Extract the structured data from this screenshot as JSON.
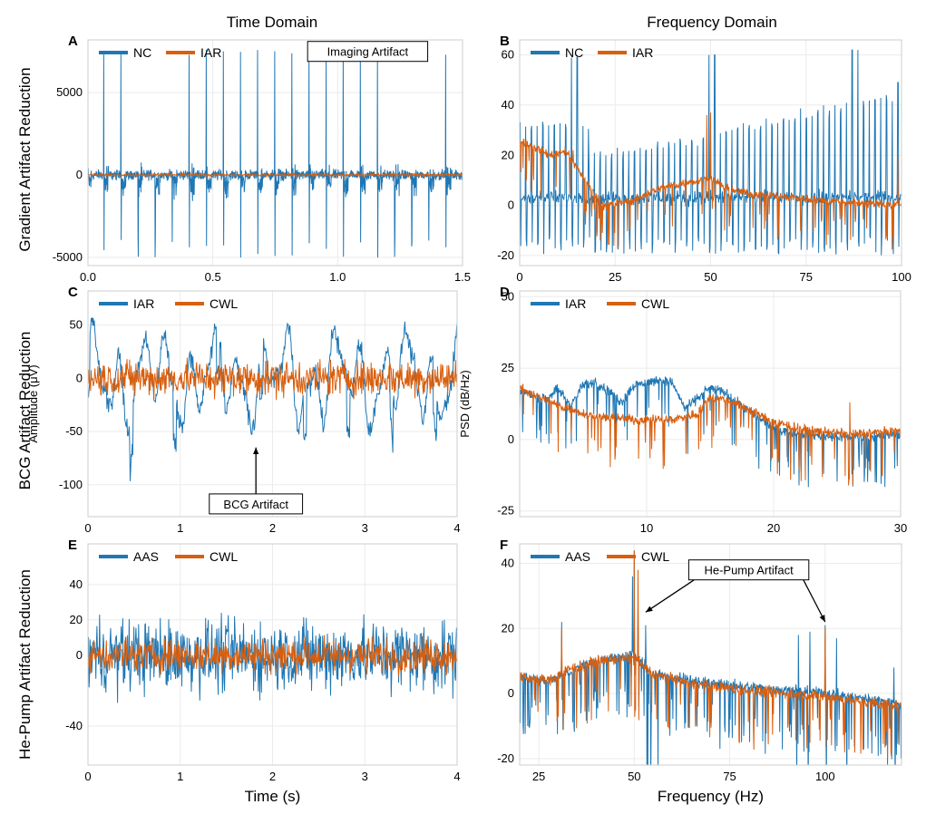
{
  "figure": {
    "columns": [
      "Time Domain",
      "Frequency Domain"
    ],
    "rows": [
      "Gradient Artifact Reduction",
      "BCG Artifact Reduction",
      "He-Pump Artifact Reduction"
    ],
    "xlabels": [
      "Time (s)",
      "Frequency (Hz)"
    ],
    "colors": {
      "blue": "#1f77b4",
      "orange": "#d95f0e",
      "grid": "#ebebeb",
      "frame": "#cccccc"
    }
  },
  "chart_data": [
    {
      "id": "A",
      "type": "line",
      "title": "A",
      "xlabel": "",
      "ylabel": "",
      "xlim": [
        0,
        1.5
      ],
      "ylim": [
        -5500,
        8200
      ],
      "xticks": [
        0.0,
        0.5,
        1.0,
        1.5
      ],
      "xtick_labels": [
        "0.0",
        "0.5",
        "1.0",
        "1.5"
      ],
      "yticks": [
        -5000,
        0,
        5000
      ],
      "ytick_labels": [
        "-5000",
        "0",
        "5000"
      ],
      "legend": {
        "position": "top-left",
        "entries": [
          "NC",
          "IAR"
        ]
      },
      "annotations": [
        {
          "text": "Imaging Artifact",
          "x": 1.12,
          "y": 7500
        }
      ],
      "series": [
        {
          "name": "NC",
          "color": "#1f77b4",
          "kind": "gradient_pulses",
          "period_s": 0.0685,
          "peak": 7600,
          "trough": -5100,
          "baseline_noise": 900
        },
        {
          "name": "IAR",
          "color": "#d95f0e",
          "kind": "noise",
          "center": 0,
          "amplitude": 120
        }
      ]
    },
    {
      "id": "B",
      "type": "line",
      "title": "B",
      "xlabel": "",
      "ylabel": "",
      "xlim": [
        0,
        100
      ],
      "ylim": [
        -24,
        66
      ],
      "xticks": [
        0,
        25,
        50,
        75,
        100
      ],
      "xtick_labels": [
        "0",
        "25",
        "50",
        "75",
        "100"
      ],
      "yticks": [
        -20,
        0,
        20,
        40,
        60
      ],
      "ytick_labels": [
        "-20",
        "0",
        "20",
        "40",
        "60"
      ],
      "legend": {
        "position": "top-left",
        "entries": [
          "NC",
          "IAR"
        ]
      },
      "series": [
        {
          "name": "NC",
          "color": "#1f77b4",
          "kind": "spectrum_comb",
          "comb_spacing_hz": 1.5,
          "comb_base": 32,
          "comb_peaks": [
            [
              14,
              59
            ],
            [
              50,
              60
            ],
            [
              88,
              62
            ],
            [
              99,
              49
            ]
          ]
        },
        {
          "name": "IAR",
          "color": "#d95f0e",
          "kind": "spectrum",
          "envelope": [
            [
              0,
              26
            ],
            [
              8,
              20
            ],
            [
              12,
              22
            ],
            [
              18,
              8
            ],
            [
              22,
              0
            ],
            [
              30,
              2
            ],
            [
              35,
              6
            ],
            [
              40,
              8
            ],
            [
              50,
              11
            ],
            [
              55,
              6
            ],
            [
              65,
              4
            ],
            [
              80,
              2
            ],
            [
              100,
              0
            ]
          ]
        }
      ]
    },
    {
      "id": "C",
      "type": "line",
      "title": "C",
      "xlabel": "",
      "ylabel": "Amplitude (μV)",
      "xlim": [
        0,
        4
      ],
      "ylim": [
        -130,
        82
      ],
      "xticks": [
        0,
        1,
        2,
        3,
        4
      ],
      "xtick_labels": [
        "0",
        "1",
        "2",
        "3",
        "4"
      ],
      "yticks": [
        -100,
        -50,
        0,
        50
      ],
      "ytick_labels": [
        "-100",
        "-50",
        "0",
        "50"
      ],
      "legend": {
        "position": "top-left",
        "entries": [
          "IAR",
          "CWL"
        ]
      },
      "annotations": [
        {
          "text": "BCG Artifact",
          "x": 1.82,
          "y": -118,
          "arrow_to": [
            1.82,
            -65
          ]
        }
      ],
      "series": [
        {
          "name": "IAR",
          "color": "#1f77b4",
          "kind": "bcg",
          "amplitude": 55,
          "beat_period_s": 0.47
        },
        {
          "name": "CWL",
          "color": "#d95f0e",
          "kind": "noise",
          "center": 0,
          "amplitude": 25
        }
      ]
    },
    {
      "id": "D",
      "type": "line",
      "title": "D",
      "xlabel": "",
      "ylabel": "PSD (dB/Hz)",
      "xlim": [
        0,
        30
      ],
      "ylim": [
        -27,
        52
      ],
      "xticks": [
        10,
        20,
        30
      ],
      "xtick_labels": [
        "10",
        "20",
        "30"
      ],
      "yticks": [
        -25,
        0,
        25,
        50
      ],
      "ytick_labels": [
        "-25",
        "0",
        "25",
        "50"
      ],
      "legend": {
        "position": "top-left",
        "entries": [
          "IAR",
          "CWL"
        ]
      },
      "series": [
        {
          "name": "IAR",
          "color": "#1f77b4",
          "kind": "spectrum",
          "envelope": [
            [
              0,
              17
            ],
            [
              2,
              14
            ],
            [
              3,
              18
            ],
            [
              4,
              12
            ],
            [
              5,
              19
            ],
            [
              6,
              20
            ],
            [
              7,
              17
            ],
            [
              8,
              13
            ],
            [
              9,
              19
            ],
            [
              11,
              21
            ],
            [
              12,
              20
            ],
            [
              13,
              11
            ],
            [
              15,
              18
            ],
            [
              16,
              17
            ],
            [
              18,
              10
            ],
            [
              20,
              4
            ],
            [
              22,
              2
            ],
            [
              25,
              1
            ],
            [
              28,
              1
            ],
            [
              30,
              2
            ]
          ]
        },
        {
          "name": "CWL",
          "color": "#d95f0e",
          "kind": "spectrum",
          "envelope": [
            [
              0,
              18
            ],
            [
              3,
              12
            ],
            [
              6,
              8
            ],
            [
              9,
              7
            ],
            [
              12,
              7
            ],
            [
              14,
              9
            ],
            [
              15,
              15
            ],
            [
              17,
              13
            ],
            [
              20,
              6
            ],
            [
              23,
              3
            ],
            [
              26,
              2
            ],
            [
              30,
              3
            ]
          ]
        }
      ]
    },
    {
      "id": "E",
      "type": "line",
      "title": "E",
      "xlabel": "Time (s)",
      "ylabel": "",
      "xlim": [
        0,
        4
      ],
      "ylim": [
        -62,
        63
      ],
      "xticks": [
        0,
        1,
        2,
        3,
        4
      ],
      "xtick_labels": [
        "0",
        "1",
        "2",
        "3",
        "4"
      ],
      "yticks": [
        -40,
        0,
        20,
        40
      ],
      "ytick_labels": [
        "-40",
        "0",
        "20",
        "40"
      ],
      "legend": {
        "position": "top-left",
        "entries": [
          "AAS",
          "CWL"
        ]
      },
      "series": [
        {
          "name": "AAS",
          "color": "#1f77b4",
          "kind": "noise",
          "center": 0,
          "amplitude": 30
        },
        {
          "name": "CWL",
          "color": "#d95f0e",
          "kind": "noise",
          "center": 0,
          "amplitude": 14
        }
      ]
    },
    {
      "id": "F",
      "type": "line",
      "title": "F",
      "xlabel": "Frequency (Hz)",
      "ylabel": "",
      "xlim": [
        20,
        120
      ],
      "ylim": [
        -22,
        46
      ],
      "xticks": [
        25,
        50,
        75,
        100
      ],
      "xtick_labels": [
        "25",
        "50",
        "75",
        "100"
      ],
      "yticks": [
        -20,
        0,
        20,
        40
      ],
      "ytick_labels": [
        "-20",
        "0",
        "20",
        "40"
      ],
      "legend": {
        "position": "top-left",
        "entries": [
          "AAS",
          "CWL"
        ]
      },
      "annotations": [
        {
          "text": "He-Pump Artifact",
          "x": 80,
          "y": 38,
          "arrows_to": [
            [
              53,
              25
            ],
            [
              100,
              22
            ]
          ]
        }
      ],
      "series": [
        {
          "name": "AAS",
          "color": "#1f77b4",
          "kind": "spectrum",
          "dips": true,
          "envelope": [
            [
              20,
              5
            ],
            [
              28,
              4
            ],
            [
              32,
              6
            ],
            [
              40,
              10
            ],
            [
              50,
              12
            ],
            [
              55,
              6
            ],
            [
              65,
              4
            ],
            [
              80,
              2
            ],
            [
              100,
              0
            ],
            [
              120,
              -3
            ]
          ]
        },
        {
          "name": "CWL",
          "color": "#d95f0e",
          "kind": "spectrum",
          "envelope": [
            [
              20,
              5
            ],
            [
              28,
              4
            ],
            [
              32,
              7
            ],
            [
              40,
              10
            ],
            [
              50,
              11
            ],
            [
              55,
              6
            ],
            [
              65,
              3
            ],
            [
              80,
              1
            ],
            [
              100,
              -1
            ],
            [
              120,
              -4
            ]
          ]
        }
      ]
    }
  ]
}
